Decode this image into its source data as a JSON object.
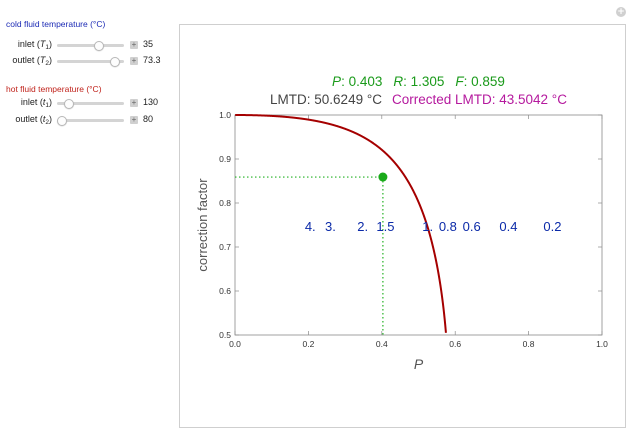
{
  "controls": {
    "cold_title": "cold fluid temperature (°C)",
    "hot_title": "hot fluid temperature (°C)",
    "cold_inlet": {
      "label": "inlet (",
      "var": "T",
      "sub": "1",
      "value": "35",
      "fraction": 0.62
    },
    "cold_outlet": {
      "label": "outlet (",
      "var": "T",
      "sub": "2",
      "value": "73.3",
      "fraction": 0.86
    },
    "hot_inlet": {
      "label": "inlet (",
      "var": "t",
      "sub": "1",
      "value": "130",
      "fraction": 0.18
    },
    "hot_outlet": {
      "label": "outlet (",
      "var": "t",
      "sub": "2",
      "value": "80",
      "fraction": 0.08
    },
    "plus_glyph": "+",
    "corner_glyph": "+"
  },
  "chart_data": {
    "type": "line",
    "xlabel": "P",
    "ylabel": "correction factor",
    "xlim": [
      0.0,
      1.0
    ],
    "ylim": [
      0.5,
      1.0
    ],
    "xticks": [
      "0.0",
      "0.2",
      "0.4",
      "0.6",
      "0.8",
      "1.0"
    ],
    "yticks": [
      "0.5",
      "0.6",
      "0.7",
      "0.8",
      "0.9",
      "1.0"
    ],
    "header_line1": {
      "P": "P: 0.403",
      "R": "R: 1.305",
      "F": "F: 0.859"
    },
    "header_line2": {
      "lmtd": "LMTD: 50.6249 °C",
      "corrected": "Corrected LMTD: 43.5042 °C"
    },
    "curve_R_values": [
      4.0,
      3.0,
      2.0,
      1.5,
      1.0,
      0.8,
      0.6,
      0.4,
      0.2
    ],
    "curve_labels": [
      {
        "text": "4.",
        "x": 0.205,
        "y": 0.748
      },
      {
        "text": "3.",
        "x": 0.26,
        "y": 0.748
      },
      {
        "text": "2.",
        "x": 0.348,
        "y": 0.748
      },
      {
        "text": "1.5",
        "x": 0.41,
        "y": 0.748
      },
      {
        "text": "1.",
        "x": 0.525,
        "y": 0.748
      },
      {
        "text": "0.8",
        "x": 0.58,
        "y": 0.748
      },
      {
        "text": "0.6",
        "x": 0.645,
        "y": 0.748
      },
      {
        "text": "0.4",
        "x": 0.745,
        "y": 0.748
      },
      {
        "text": "0.2",
        "x": 0.865,
        "y": 0.748
      }
    ],
    "point": {
      "x": 0.403,
      "y": 0.859
    },
    "colors": {
      "curve": "#a50000",
      "point": "#1aaa1a",
      "guide": "#22b022",
      "label": "#0b2aa8",
      "header_green": "#1a9a1a",
      "header_purple": "#b5199e",
      "header_gray": "#444444"
    }
  }
}
